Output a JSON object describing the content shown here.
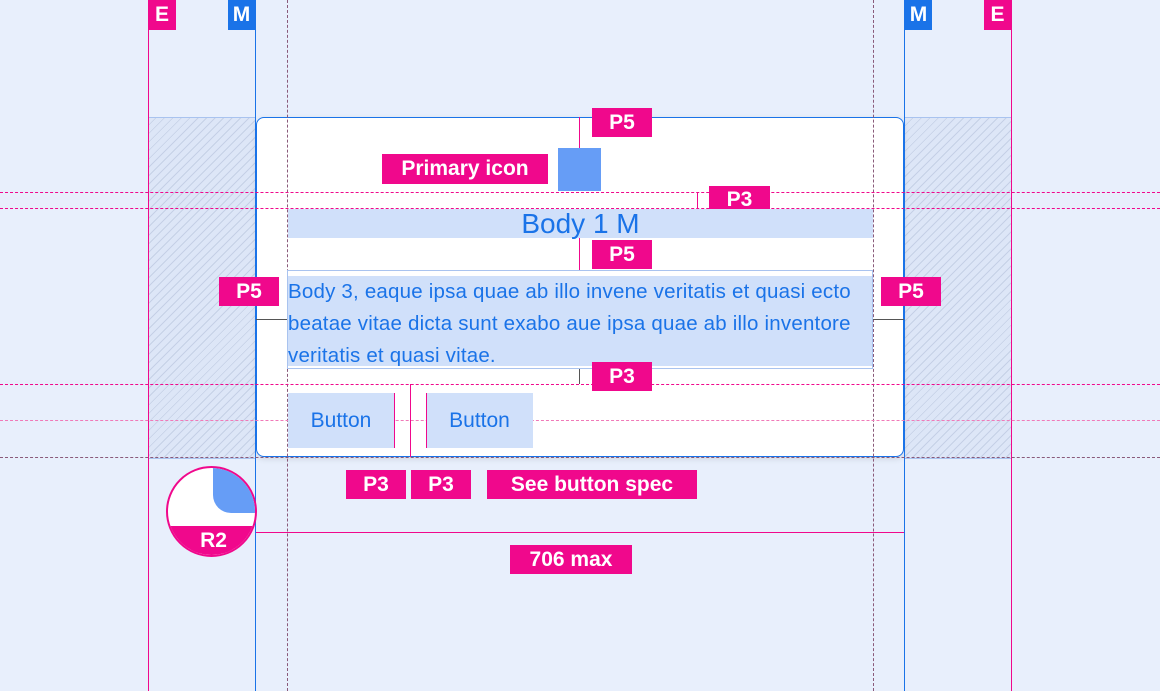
{
  "guides": {
    "edge_label": "E",
    "margin_label": "M"
  },
  "card": {
    "title": "Body 1 M",
    "body": "Body 3, eaque ipsa quae ab illo invene veritatis et quasi ecto beatae vitae dicta sunt exabo aue ipsa quae ab illo inventore veritatis et quasi vitae.",
    "buttons": [
      "Button",
      "Button"
    ]
  },
  "annotations": {
    "primary_icon": "Primary icon",
    "p5": "P5",
    "p3": "P3",
    "button_spec": "See button spec",
    "radius": "R2",
    "max_width": "706 max"
  },
  "colors": {
    "annotation": "#f0088c",
    "primary": "#1a73e8",
    "icon": "#669df6",
    "background": "#e8effc"
  }
}
